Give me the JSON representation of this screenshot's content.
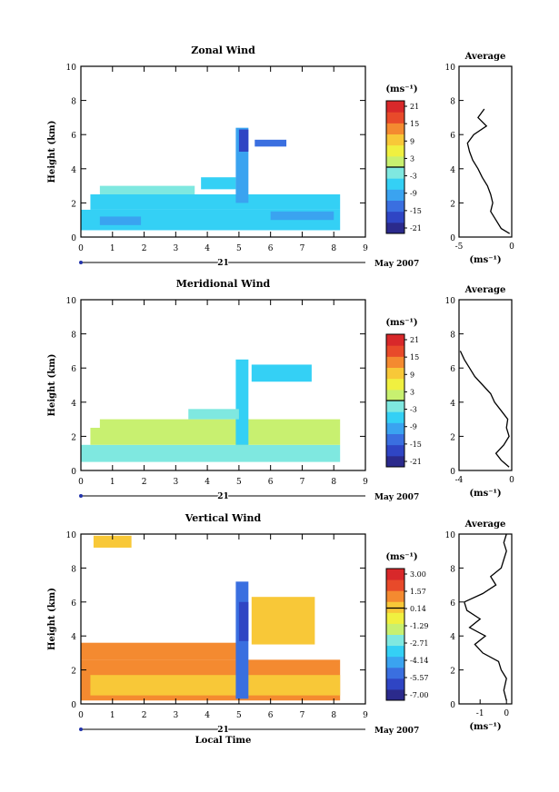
{
  "colors": {
    "cmap": [
      "#2b2a8c",
      "#2f45c4",
      "#3a6fe0",
      "#3aa3f0",
      "#34d0f5",
      "#7fe8e0",
      "#c8f070",
      "#f0f040",
      "#f8c838",
      "#f48a30",
      "#e84a2a",
      "#d8282a"
    ]
  },
  "common": {
    "x_ticks": [
      "0",
      "1",
      "2",
      "3",
      "4",
      "5",
      "6",
      "7",
      "8",
      "9"
    ],
    "day_label": "21",
    "date_label": "May 2007",
    "unit_label": "(ms⁻¹)",
    "avg_title": "Average",
    "xlabel_bottom": "Local Time"
  },
  "chart_data": [
    {
      "type": "heatmap",
      "title": "Zonal Wind",
      "ylabel": "Height (km)",
      "xlim": [
        0,
        9
      ],
      "ylim": [
        0,
        10
      ],
      "y_ticks": [
        "0",
        "2",
        "4",
        "6",
        "8",
        "10"
      ],
      "colorbar": {
        "min": -21,
        "max": 21,
        "ticks": [
          "21",
          "15",
          "9",
          "3",
          "-3",
          "-9",
          "-15",
          "-21"
        ]
      },
      "regions": [
        {
          "x": [
            0.0,
            8.2
          ],
          "y": [
            0.4,
            1.6
          ],
          "value": -4
        },
        {
          "x": [
            0.3,
            8.2
          ],
          "y": [
            1.6,
            2.5
          ],
          "value": -5
        },
        {
          "x": [
            0.6,
            3.6
          ],
          "y": [
            2.5,
            3.0
          ],
          "value": -3
        },
        {
          "x": [
            3.8,
            4.9
          ],
          "y": [
            2.8,
            3.5
          ],
          "value": -6
        },
        {
          "x": [
            4.9,
            5.3
          ],
          "y": [
            2.0,
            6.4
          ],
          "value": -10
        },
        {
          "x": [
            5.0,
            5.3
          ],
          "y": [
            5.0,
            6.3
          ],
          "value": -16
        },
        {
          "x": [
            5.5,
            6.5
          ],
          "y": [
            5.3,
            5.7
          ],
          "value": -12
        },
        {
          "x": [
            0.6,
            1.9
          ],
          "y": [
            0.7,
            1.2
          ],
          "value": -8
        },
        {
          "x": [
            6.0,
            8.0
          ],
          "y": [
            1.0,
            1.5
          ],
          "value": -8
        }
      ],
      "average": {
        "xlim": [
          -5,
          0
        ],
        "x_ticks": [
          "-5",
          "0"
        ],
        "xlabel": "(ms⁻¹)",
        "height_km": [
          0.2,
          0.5,
          1.0,
          1.5,
          2.0,
          2.5,
          3.0,
          3.5,
          4.0,
          4.5,
          5.0,
          5.5,
          6.0,
          6.5,
          7.0,
          7.5
        ],
        "speed": [
          -0.2,
          -1.0,
          -1.5,
          -2.0,
          -1.8,
          -2.0,
          -2.3,
          -2.8,
          -3.2,
          -3.7,
          -4.0,
          -4.2,
          -3.6,
          -2.4,
          -3.2,
          -2.6
        ]
      }
    },
    {
      "type": "heatmap",
      "title": "Meridional Wind",
      "ylabel": "Height (km)",
      "xlim": [
        0,
        9
      ],
      "ylim": [
        0,
        10
      ],
      "y_ticks": [
        "0",
        "2",
        "4",
        "6",
        "8",
        "10"
      ],
      "colorbar": {
        "min": -21,
        "max": 21,
        "ticks": [
          "21",
          "15",
          "9",
          "3",
          "-3",
          "-9",
          "-15",
          "-21"
        ]
      },
      "regions": [
        {
          "x": [
            0.0,
            8.2
          ],
          "y": [
            0.5,
            1.5
          ],
          "value": -1
        },
        {
          "x": [
            0.3,
            8.2
          ],
          "y": [
            1.5,
            2.5
          ],
          "value": 1
        },
        {
          "x": [
            0.6,
            8.2
          ],
          "y": [
            2.5,
            3.0
          ],
          "value": 3
        },
        {
          "x": [
            4.9,
            5.3
          ],
          "y": [
            1.5,
            6.5
          ],
          "value": -6
        },
        {
          "x": [
            5.4,
            7.3
          ],
          "y": [
            5.2,
            6.2
          ],
          "value": -5
        },
        {
          "x": [
            3.4,
            5.0
          ],
          "y": [
            3.0,
            3.6
          ],
          "value": -3
        }
      ],
      "average": {
        "xlim": [
          -4,
          0
        ],
        "x_ticks": [
          "-4",
          "0"
        ],
        "xlabel": "(ms⁻¹)",
        "height_km": [
          0.2,
          0.6,
          1.0,
          1.5,
          2.0,
          2.5,
          3.0,
          3.5,
          4.0,
          4.5,
          5.0,
          5.5,
          6.0,
          6.5,
          7.0
        ],
        "speed": [
          -0.2,
          -0.8,
          -1.2,
          -0.6,
          -0.2,
          -0.4,
          -0.3,
          -0.8,
          -1.3,
          -1.6,
          -2.2,
          -2.8,
          -3.2,
          -3.6,
          -3.9
        ]
      }
    },
    {
      "type": "heatmap",
      "title": "Vertical Wind",
      "ylabel": "Height (km)",
      "xlabel": "Local Time",
      "xlim": [
        0,
        9
      ],
      "ylim": [
        0,
        10
      ],
      "y_ticks": [
        "0",
        "2",
        "4",
        "6",
        "8",
        "10"
      ],
      "colorbar": {
        "min": -7.0,
        "max": 3.0,
        "ticks": [
          "3.00",
          "1.57",
          "0.14",
          "-1.29",
          "-2.71",
          "-4.14",
          "-5.57",
          "-7.00"
        ]
      },
      "regions": [
        {
          "x": [
            0.0,
            8.2
          ],
          "y": [
            0.2,
            2.6
          ],
          "value": 0.8
        },
        {
          "x": [
            0.3,
            8.2
          ],
          "y": [
            0.5,
            1.7
          ],
          "value": -0.3
        },
        {
          "x": [
            0.0,
            5.0
          ],
          "y": [
            2.6,
            3.6
          ],
          "value": 1.2
        },
        {
          "x": [
            0.4,
            1.6
          ],
          "y": [
            9.2,
            9.9
          ],
          "value": 0.0
        },
        {
          "x": [
            4.9,
            5.3
          ],
          "y": [
            0.3,
            7.2
          ],
          "value": -4.6
        },
        {
          "x": [
            5.0,
            5.3
          ],
          "y": [
            3.7,
            6.0
          ],
          "value": -6.0
        },
        {
          "x": [
            5.4,
            7.4
          ],
          "y": [
            3.5,
            6.3
          ],
          "value": -0.2
        }
      ],
      "average": {
        "xlim": [
          -1.8,
          0.2
        ],
        "x_ticks": [
          "-1",
          "0"
        ],
        "xlabel": "(ms⁻¹)",
        "height_km": [
          0.2,
          0.8,
          1.5,
          2.0,
          2.5,
          3.0,
          3.5,
          4.0,
          4.5,
          5.0,
          5.5,
          6.0,
          6.5,
          7.0,
          7.5,
          8.0,
          8.5,
          9.0,
          9.5,
          10.0
        ],
        "speed": [
          0.0,
          -0.1,
          0.0,
          -0.2,
          -0.3,
          -0.9,
          -1.2,
          -0.8,
          -1.4,
          -1.0,
          -1.5,
          -1.6,
          -0.9,
          -0.4,
          -0.6,
          -0.2,
          -0.1,
          0.0,
          -0.1,
          0.0
        ]
      }
    }
  ]
}
